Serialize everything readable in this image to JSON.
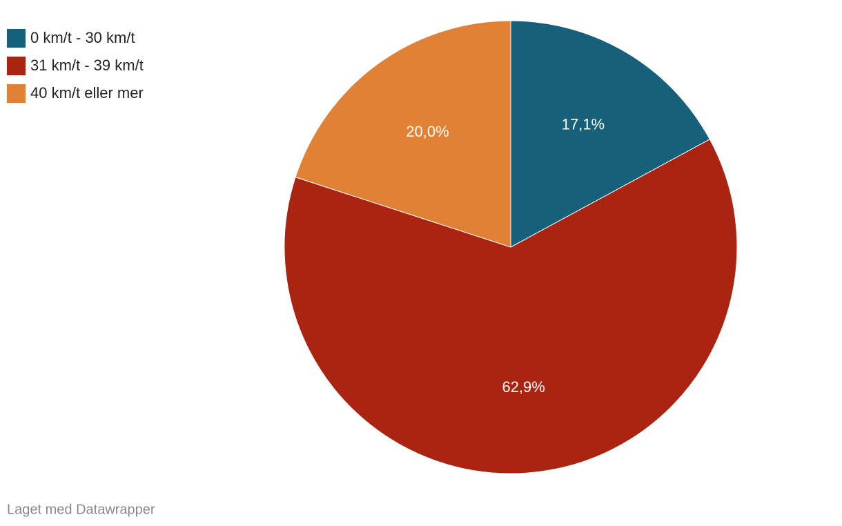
{
  "chart_data": {
    "type": "pie",
    "categories": [
      "0 km/t - 30 km/t",
      "31 km/t - 39 km/t",
      "40 km/t eller mer"
    ],
    "values": [
      17.1,
      62.9,
      20.0
    ],
    "value_labels": [
      "17,1%",
      "62,9%",
      "20,0%"
    ],
    "colors": [
      "#17607a",
      "#ab2311",
      "#e08136"
    ],
    "legend": "top-left",
    "credit": "Laget med Datawrapper"
  }
}
